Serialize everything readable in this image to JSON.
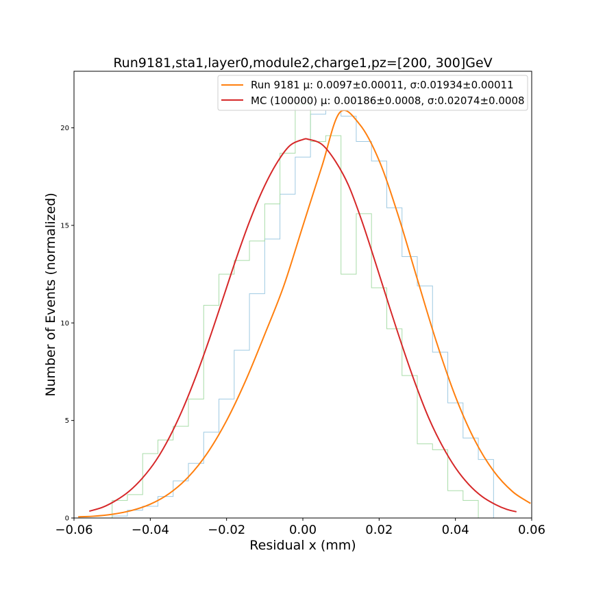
{
  "chart_data": {
    "type": "line",
    "title": "Run9181,sta1,layer0,module2,charge1,pz=[200, 300]GeV",
    "xlabel": "Residual x (mm)",
    "ylabel": "Number of Events (normalized)",
    "xlim": [
      -0.06,
      0.06
    ],
    "ylim": [
      0,
      22.9
    ],
    "xticks": [
      -0.06,
      -0.04,
      -0.02,
      0.0,
      0.02,
      0.04,
      0.06
    ],
    "xtick_labels": [
      "−0.06",
      "−0.04",
      "−0.02",
      "0.00",
      "0.02",
      "0.04",
      "0.06"
    ],
    "yticks": [
      0,
      5,
      10,
      15,
      20
    ],
    "ytick_labels": [
      "0",
      "5",
      "10",
      "15",
      "20"
    ],
    "grid": false,
    "legend_position": "top-right",
    "histograms": [
      {
        "color": "#9ec9e2",
        "bin_edges": [
          -0.05,
          -0.046,
          -0.042,
          -0.038,
          -0.034,
          -0.03,
          -0.026,
          -0.022,
          -0.018,
          -0.014,
          -0.01,
          -0.006,
          -0.002,
          0.002,
          0.006,
          0.01,
          0.014,
          0.018,
          0.022,
          0.026,
          0.03,
          0.034,
          0.038,
          0.042,
          0.046,
          0.05
        ],
        "values": [
          0.1,
          0.4,
          0.6,
          1.1,
          1.9,
          2.8,
          4.4,
          6.1,
          8.6,
          11.5,
          14.3,
          16.6,
          18.5,
          20.7,
          20.9,
          20.6,
          19.3,
          18.3,
          15.9,
          13.4,
          11.9,
          8.5,
          5.9,
          4.1,
          3.0
        ]
      },
      {
        "color": "#a8dca8",
        "bin_edges": [
          -0.05,
          -0.046,
          -0.042,
          -0.038,
          -0.034,
          -0.03,
          -0.026,
          -0.022,
          -0.018,
          -0.014,
          -0.01,
          -0.006,
          -0.002,
          0.002,
          0.006,
          0.01,
          0.014,
          0.018,
          0.022,
          0.026,
          0.03,
          0.034,
          0.038,
          0.042,
          0.046,
          0.05
        ],
        "values": [
          0.9,
          1.2,
          3.3,
          4.0,
          4.7,
          6.1,
          10.9,
          12.5,
          13.2,
          14.2,
          16.1,
          18.7,
          21.2,
          19.3,
          19.6,
          12.5,
          15.6,
          11.8,
          9.7,
          7.3,
          3.8,
          3.5,
          1.4,
          0.9,
          0.0
        ]
      }
    ],
    "series": [
      {
        "name": "Run 9181 μ: 0.0097±0.00011, σ:0.01934±0.00011",
        "color": "#ff7f0e",
        "x": [
          -0.0589,
          -0.055,
          -0.05,
          -0.045,
          -0.04,
          -0.035,
          -0.03,
          -0.025,
          -0.02,
          -0.015,
          -0.01,
          -0.005,
          0.0,
          0.005,
          0.0097,
          0.015,
          0.02,
          0.025,
          0.03,
          0.035,
          0.04,
          0.045,
          0.05,
          0.055,
          0.0597
        ],
        "values": [
          0.06,
          0.09,
          0.19,
          0.38,
          0.71,
          1.26,
          2.11,
          3.34,
          4.99,
          7.04,
          9.41,
          11.9,
          14.97,
          18.03,
          20.79,
          20.15,
          18.32,
          15.51,
          12.25,
          9.04,
          6.23,
          4.01,
          2.41,
          1.35,
          0.75
        ]
      },
      {
        "name": "MC (100000) μ: 0.00186±0.0008, σ:0.02074±0.0008",
        "color": "#d62728",
        "x": [
          -0.056,
          -0.0525,
          -0.049,
          -0.0455,
          -0.042,
          -0.0385,
          -0.035,
          -0.0315,
          -0.028,
          -0.0245,
          -0.021,
          -0.0175,
          -0.014,
          -0.0105,
          -0.007,
          -0.0035,
          0.0,
          0.0015,
          0.005,
          0.0085,
          0.012,
          0.0155,
          0.019,
          0.0225,
          0.026,
          0.0295,
          0.033,
          0.0365,
          0.04,
          0.0435,
          0.047,
          0.0505,
          0.0535,
          0.056
        ],
        "values": [
          0.35,
          0.55,
          0.9,
          1.38,
          2.06,
          2.95,
          4.13,
          5.58,
          7.28,
          9.18,
          11.22,
          13.28,
          15.19,
          16.83,
          18.14,
          19.07,
          19.4,
          19.41,
          19.15,
          18.3,
          17.04,
          15.21,
          13.11,
          10.95,
          8.85,
          6.88,
          5.13,
          3.72,
          2.58,
          1.72,
          1.1,
          0.69,
          0.44,
          0.32
        ]
      }
    ]
  }
}
